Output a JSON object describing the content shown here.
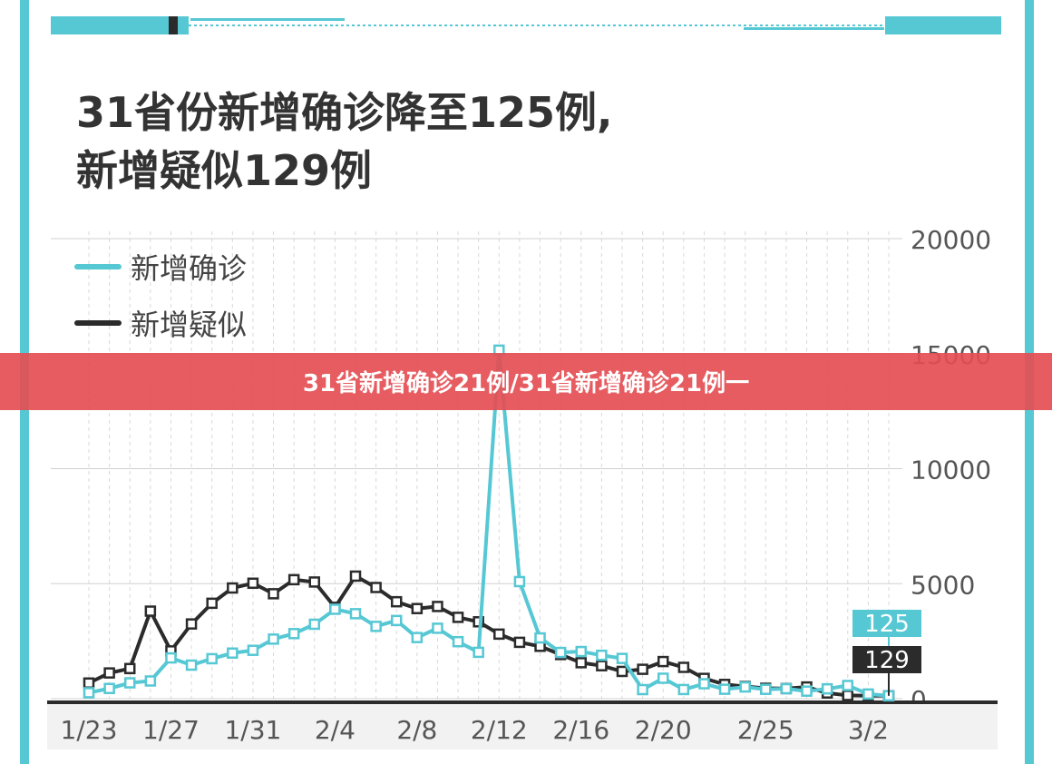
{
  "page": {
    "title_line1": "31省份新增确诊降至125例,",
    "title_line2": "新增疑似129例",
    "banner_text": "31省新增确诊21例/31省新增确诊21例一"
  },
  "colors": {
    "confirmed": "#56c8d4",
    "suspected": "#2b2b2b",
    "frame": "#56c8d4",
    "banner": "#e44e54",
    "grid": "#d8d8d8",
    "axis_text": "#555555"
  },
  "chart_data": {
    "type": "line",
    "title": "",
    "xlabel": "",
    "ylabel": "",
    "ylim": [
      0,
      20000
    ],
    "y_ticks": [
      "0",
      "5000",
      "10000",
      "15000",
      "20000"
    ],
    "x_tick_labels": [
      {
        "label": "1/23",
        "index": 0
      },
      {
        "label": "1/27",
        "index": 4
      },
      {
        "label": "1/31",
        "index": 8
      },
      {
        "label": "2/4",
        "index": 12
      },
      {
        "label": "2/8",
        "index": 16
      },
      {
        "label": "2/12",
        "index": 20
      },
      {
        "label": "2/16",
        "index": 24
      },
      {
        "label": "2/20",
        "index": 28
      },
      {
        "label": "2/25",
        "index": 33
      },
      {
        "label": "3/2",
        "index": 38
      }
    ],
    "dates": [
      "1/23",
      "1/24",
      "1/25",
      "1/26",
      "1/27",
      "1/28",
      "1/29",
      "1/30",
      "1/31",
      "2/1",
      "2/2",
      "2/3",
      "2/4",
      "2/5",
      "2/6",
      "2/7",
      "2/8",
      "2/9",
      "2/10",
      "2/11",
      "2/12",
      "2/13",
      "2/14",
      "2/15",
      "2/16",
      "2/17",
      "2/18",
      "2/19",
      "2/20",
      "2/21",
      "2/22",
      "2/23",
      "2/24",
      "2/25",
      "2/26",
      "2/27",
      "2/28",
      "2/29",
      "3/1",
      "3/2"
    ],
    "legend": {
      "position": "top-left"
    },
    "grid": true,
    "series": [
      {
        "name": "新增确诊",
        "color": "#56c8d4",
        "values": [
          259,
          444,
          688,
          769,
          1771,
          1459,
          1737,
          1982,
          2102,
          2590,
          2829,
          3235,
          3887,
          3694,
          3143,
          3399,
          2656,
          3062,
          2478,
          2015,
          15152,
          5090,
          2641,
          2009,
          2048,
          1886,
          1749,
          394,
          889,
          397,
          648,
          409,
          508,
          406,
          433,
          327,
          427,
          573,
          202,
          125
        ]
      },
      {
        "name": "新增疑似",
        "color": "#2b2b2b",
        "values": [
          680,
          1118,
          1309,
          3806,
          2077,
          3248,
          4148,
          4812,
          5019,
          4562,
          5173,
          5072,
          3971,
          5328,
          4833,
          4214,
          3916,
          4008,
          3536,
          3342,
          2807,
          2450,
          2277,
          1918,
          1563,
          1432,
          1185,
          1277,
          1614,
          1361,
          882,
          620,
          530,
          452,
          439,
          508,
          248,
          141,
          129,
          129
        ]
      }
    ],
    "callouts": [
      {
        "series": "新增确诊",
        "label": "125",
        "color": "#56c8d4"
      },
      {
        "series": "新增疑似",
        "label": "129",
        "color": "#2b2b2b"
      }
    ]
  }
}
